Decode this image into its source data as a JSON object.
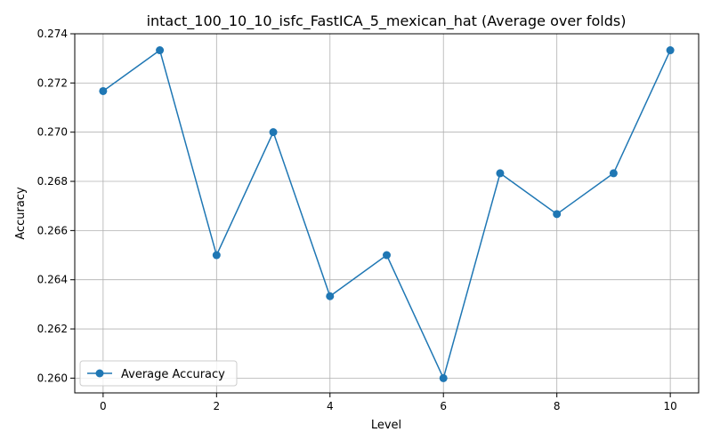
{
  "chart_data": {
    "type": "line",
    "title": "intact_100_10_10_isfc_FastICA_5_mexican_hat (Average over folds)",
    "xlabel": "Level",
    "ylabel": "Accuracy",
    "xlim": [
      -0.5,
      10.5
    ],
    "ylim": [
      0.2594,
      0.274
    ],
    "xticks": [
      0,
      2,
      4,
      6,
      8,
      10
    ],
    "yticks": [
      0.26,
      0.262,
      0.264,
      0.266,
      0.268,
      0.27,
      0.272,
      0.274
    ],
    "ytick_labels": [
      "0.260",
      "0.262",
      "0.264",
      "0.266",
      "0.268",
      "0.270",
      "0.272",
      "0.274"
    ],
    "grid": true,
    "legend_position": "lower-left",
    "series": [
      {
        "name": "Average Accuracy",
        "color": "#1f77b4",
        "marker": "circle",
        "x": [
          0,
          1,
          2,
          3,
          4,
          5,
          6,
          7,
          8,
          9,
          10
        ],
        "values": [
          0.27167,
          0.27333,
          0.265,
          0.27,
          0.26333,
          0.265,
          0.26,
          0.26833,
          0.26667,
          0.26833,
          0.27333
        ]
      }
    ]
  }
}
